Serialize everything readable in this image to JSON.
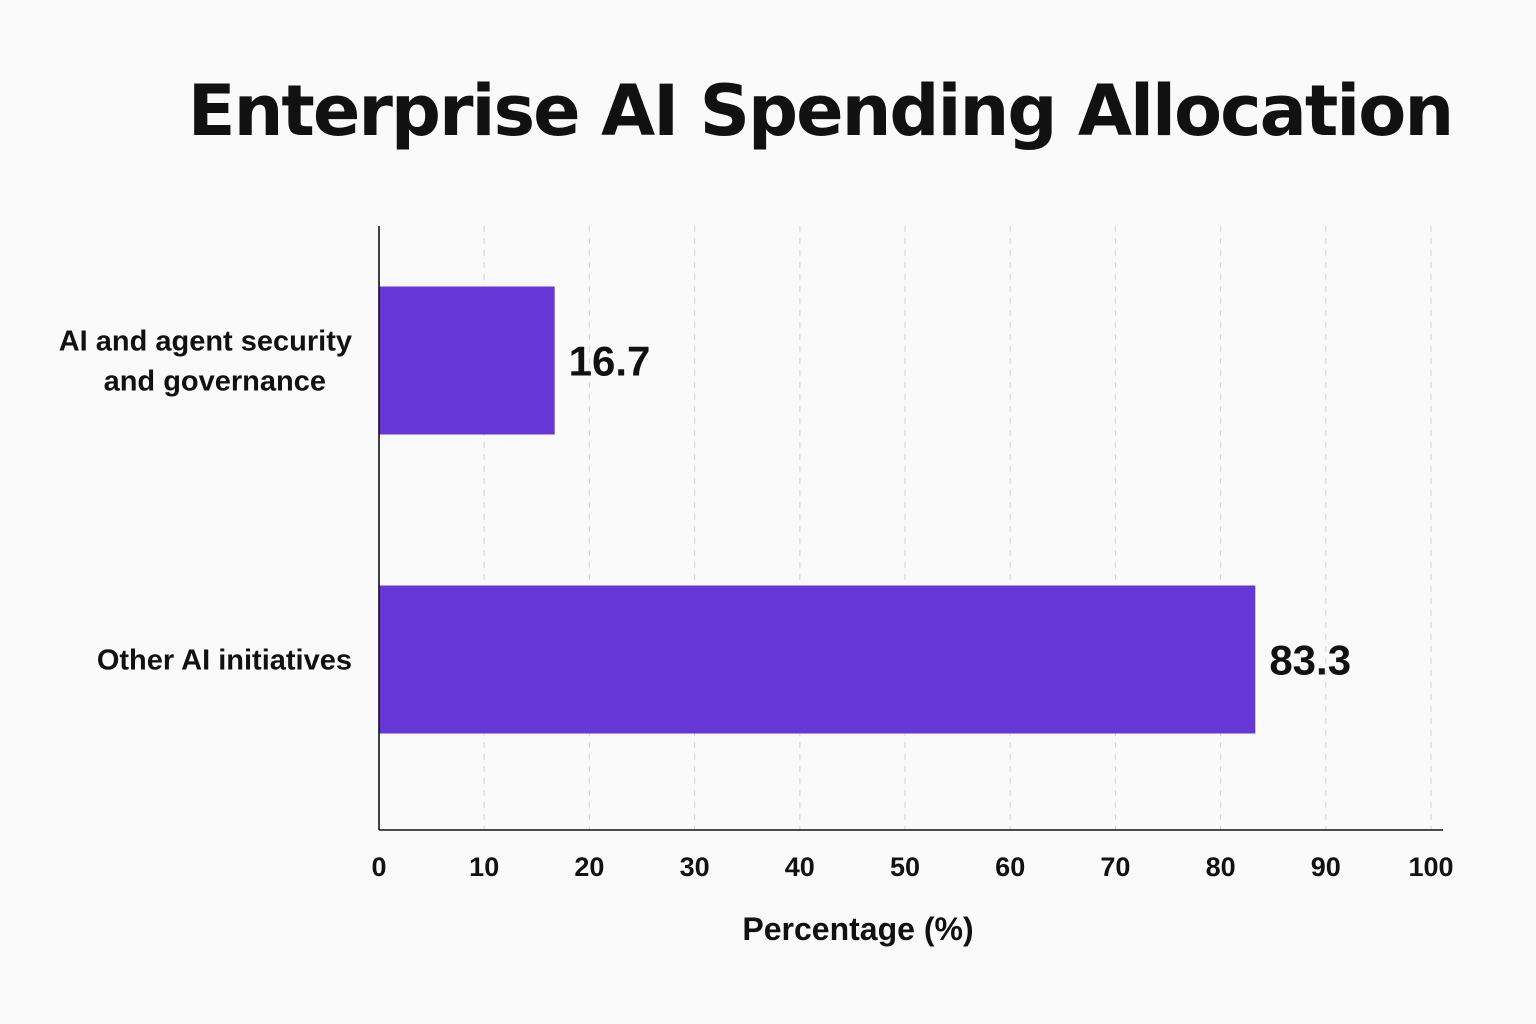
{
  "chart_data": {
    "type": "bar",
    "orientation": "horizontal",
    "title": "Enterprise AI Spending Allocation",
    "xlabel": "Percentage (%)",
    "ylabel": "",
    "categories": [
      [
        "AI and agent security",
        "and governance"
      ],
      [
        "Other AI initiatives"
      ]
    ],
    "values": [
      16.7,
      83.3
    ],
    "value_labels": [
      "16.7",
      "83.3"
    ],
    "xlim": [
      0,
      100
    ],
    "xticks": [
      0,
      10,
      20,
      30,
      40,
      50,
      60,
      70,
      80,
      90,
      100
    ],
    "grid": "vertical dashed",
    "legend": "none",
    "bar_color": "#6637d6",
    "axis_color": "#111111",
    "grid_color": "#d9d9d9"
  }
}
